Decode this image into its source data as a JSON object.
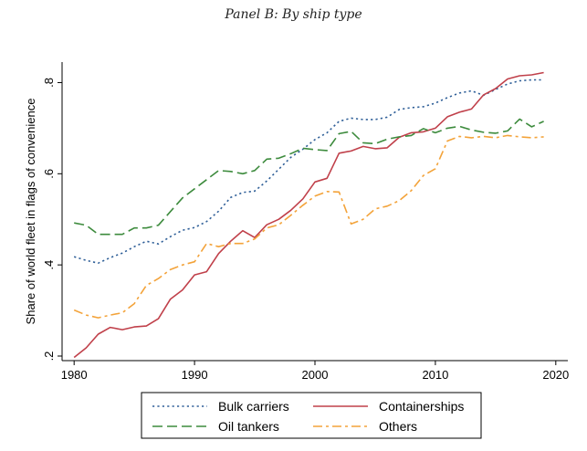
{
  "chart_data": {
    "type": "line",
    "title": "Panel B: By ship type",
    "xlabel": "",
    "ylabel": "Share of world fleet in flags of convenience",
    "xlim": [
      1979,
      2021
    ],
    "ylim": [
      0.19,
      0.845
    ],
    "xticks": [
      1980,
      1990,
      2000,
      2010,
      2020
    ],
    "xtick_labels": [
      "1980",
      "1990",
      "2000",
      "2010",
      "2020"
    ],
    "yticks": [
      0.2,
      0.4,
      0.6,
      0.8
    ],
    "ytick_labels": [
      ".2",
      ".4",
      ".6",
      ".8"
    ],
    "grid": false,
    "legend_position": "bottom",
    "x": [
      1980,
      1981,
      1982,
      1983,
      1984,
      1985,
      1986,
      1987,
      1988,
      1989,
      1990,
      1991,
      1992,
      1993,
      1994,
      1995,
      1996,
      1997,
      1998,
      1999,
      2000,
      2001,
      2002,
      2003,
      2004,
      2005,
      2006,
      2007,
      2008,
      2009,
      2010,
      2011,
      2012,
      2013,
      2014,
      2015,
      2016,
      2017,
      2018,
      2019
    ],
    "series": [
      {
        "name": "Bulk carriers",
        "color": "#2f5f98",
        "dash": "dot",
        "values": [
          0.418,
          0.41,
          0.404,
          0.416,
          0.426,
          0.44,
          0.452,
          0.446,
          0.462,
          0.476,
          0.482,
          0.495,
          0.518,
          0.548,
          0.559,
          0.562,
          0.584,
          0.61,
          0.636,
          0.654,
          0.675,
          0.69,
          0.715,
          0.722,
          0.719,
          0.719,
          0.724,
          0.741,
          0.745,
          0.747,
          0.755,
          0.767,
          0.777,
          0.782,
          0.772,
          0.785,
          0.797,
          0.804,
          0.806,
          0.806
        ]
      },
      {
        "name": "Containerships",
        "color": "#c0404a",
        "dash": "solid",
        "values": [
          0.197,
          0.218,
          0.248,
          0.263,
          0.258,
          0.264,
          0.266,
          0.282,
          0.325,
          0.345,
          0.378,
          0.385,
          0.425,
          0.452,
          0.475,
          0.46,
          0.488,
          0.5,
          0.52,
          0.545,
          0.582,
          0.59,
          0.645,
          0.65,
          0.66,
          0.655,
          0.657,
          0.68,
          0.69,
          0.692,
          0.7,
          0.725,
          0.735,
          0.742,
          0.773,
          0.787,
          0.808,
          0.815,
          0.817,
          0.822
        ]
      },
      {
        "name": "Oil tankers",
        "color": "#3d8b3d",
        "dash": "long-dash",
        "values": [
          0.492,
          0.487,
          0.467,
          0.467,
          0.467,
          0.481,
          0.481,
          0.487,
          0.517,
          0.547,
          0.567,
          0.587,
          0.607,
          0.605,
          0.6,
          0.607,
          0.632,
          0.634,
          0.644,
          0.656,
          0.653,
          0.651,
          0.688,
          0.693,
          0.668,
          0.666,
          0.676,
          0.681,
          0.684,
          0.699,
          0.69,
          0.7,
          0.704,
          0.696,
          0.691,
          0.689,
          0.694,
          0.72,
          0.703,
          0.715
        ]
      },
      {
        "name": "Others",
        "color": "#f3a33a",
        "dash": "dash-dot",
        "values": [
          0.301,
          0.29,
          0.284,
          0.29,
          0.295,
          0.315,
          0.355,
          0.37,
          0.39,
          0.4,
          0.407,
          0.447,
          0.44,
          0.447,
          0.447,
          0.457,
          0.481,
          0.488,
          0.509,
          0.531,
          0.551,
          0.561,
          0.56,
          0.49,
          0.5,
          0.523,
          0.529,
          0.541,
          0.563,
          0.596,
          0.611,
          0.672,
          0.682,
          0.679,
          0.682,
          0.679,
          0.684,
          0.681,
          0.679,
          0.681
        ]
      }
    ]
  }
}
